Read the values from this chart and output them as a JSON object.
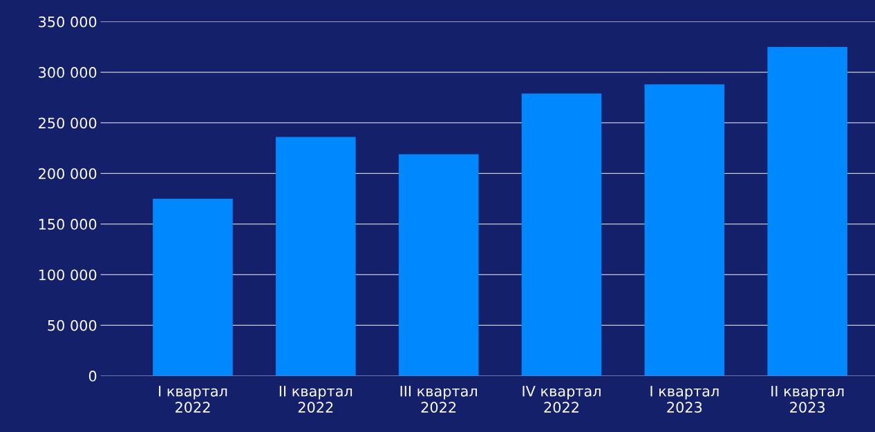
{
  "chart_data": {
    "type": "bar",
    "categories": [
      "I квартал\n2022",
      "II квартал\n2022",
      "III квартал\n2022",
      "IV квартал\n2022",
      "I квартал\n2023",
      "II квартал\n2023"
    ],
    "values": [
      175000,
      236000,
      219000,
      279000,
      288000,
      325000
    ],
    "color": "#0088ff",
    "ylim": [
      0,
      350000
    ],
    "yticks": [
      {
        "value": 0,
        "label": "0"
      },
      {
        "value": 50000,
        "label": "50 000"
      },
      {
        "value": 100000,
        "label": "100 000"
      },
      {
        "value": 150000,
        "label": "150 000"
      },
      {
        "value": 200000,
        "label": "200 000"
      },
      {
        "value": 250000,
        "label": "250 000"
      },
      {
        "value": 300000,
        "label": "300 000"
      },
      {
        "value": 350000,
        "label": "350 000"
      }
    ],
    "grid": "y"
  }
}
